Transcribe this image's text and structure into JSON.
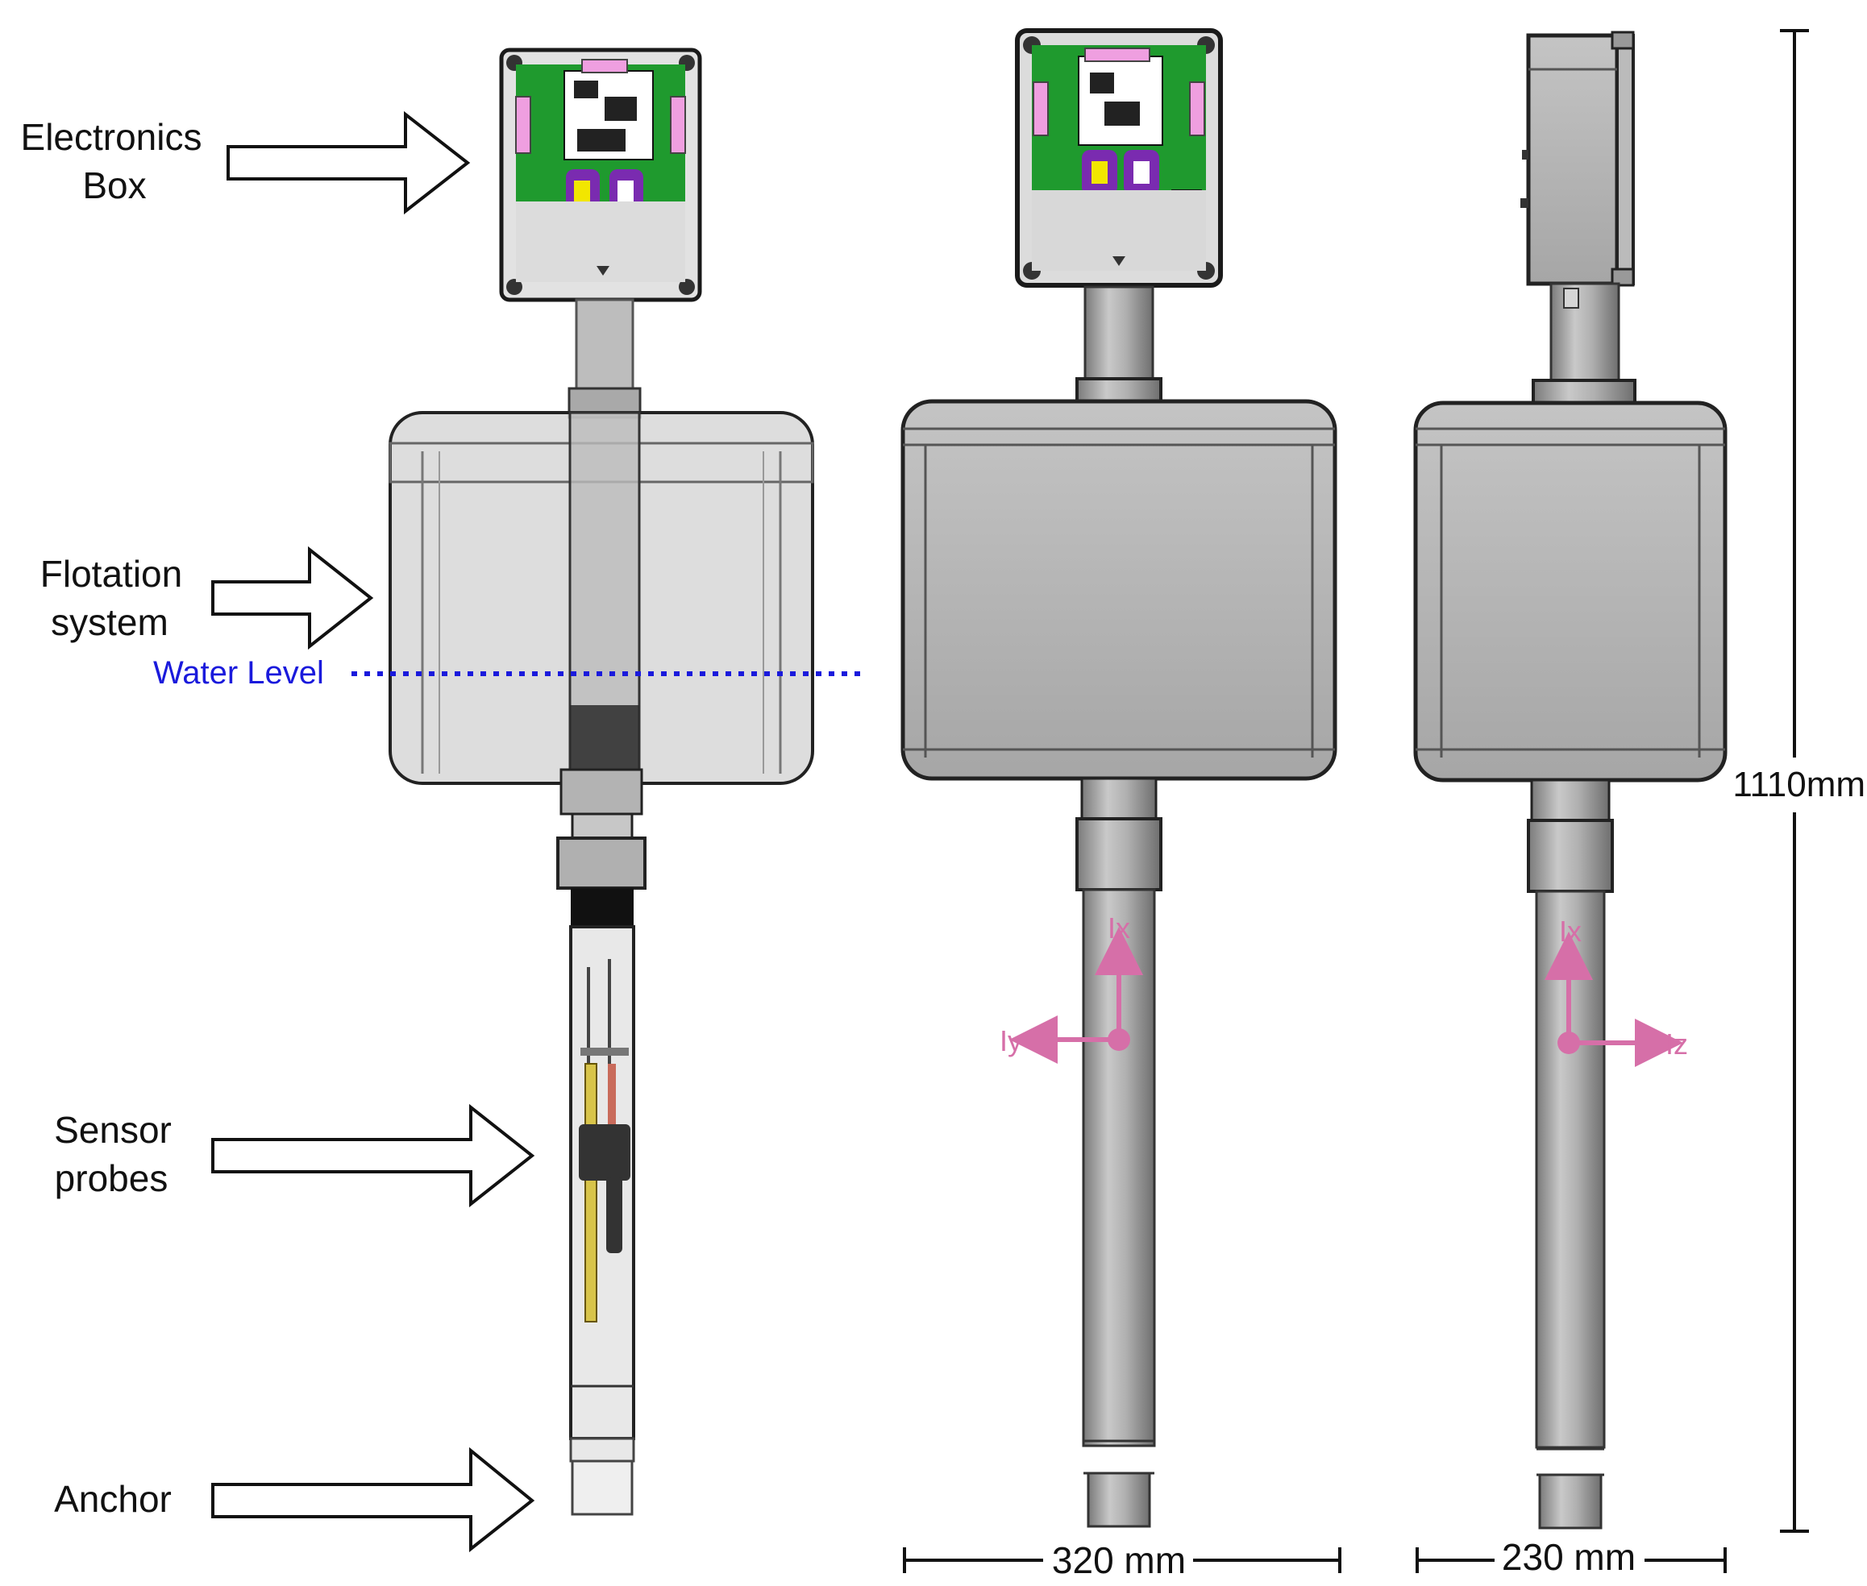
{
  "labels": {
    "electronics_box": [
      "Electronics",
      "Box"
    ],
    "flotation_system": [
      "Flotation",
      "system"
    ],
    "water_level": "Water Level",
    "sensor_probes": [
      "Sensor",
      "probes"
    ],
    "anchor": "Anchor"
  },
  "dimensions": {
    "height": "1110mm",
    "width_front": "320 mm",
    "width_side": "230 mm"
  },
  "axes": {
    "front": {
      "up": "Ix",
      "left": "Iy"
    },
    "side": {
      "up": "Ix",
      "right": "Iz"
    }
  },
  "colors": {
    "water_level": "#1a1adc",
    "axis": "#d66fa8",
    "body": "#a9a9a9",
    "pcb_green": "#1f9a2e",
    "connector_purple": "#7a2bb0"
  }
}
